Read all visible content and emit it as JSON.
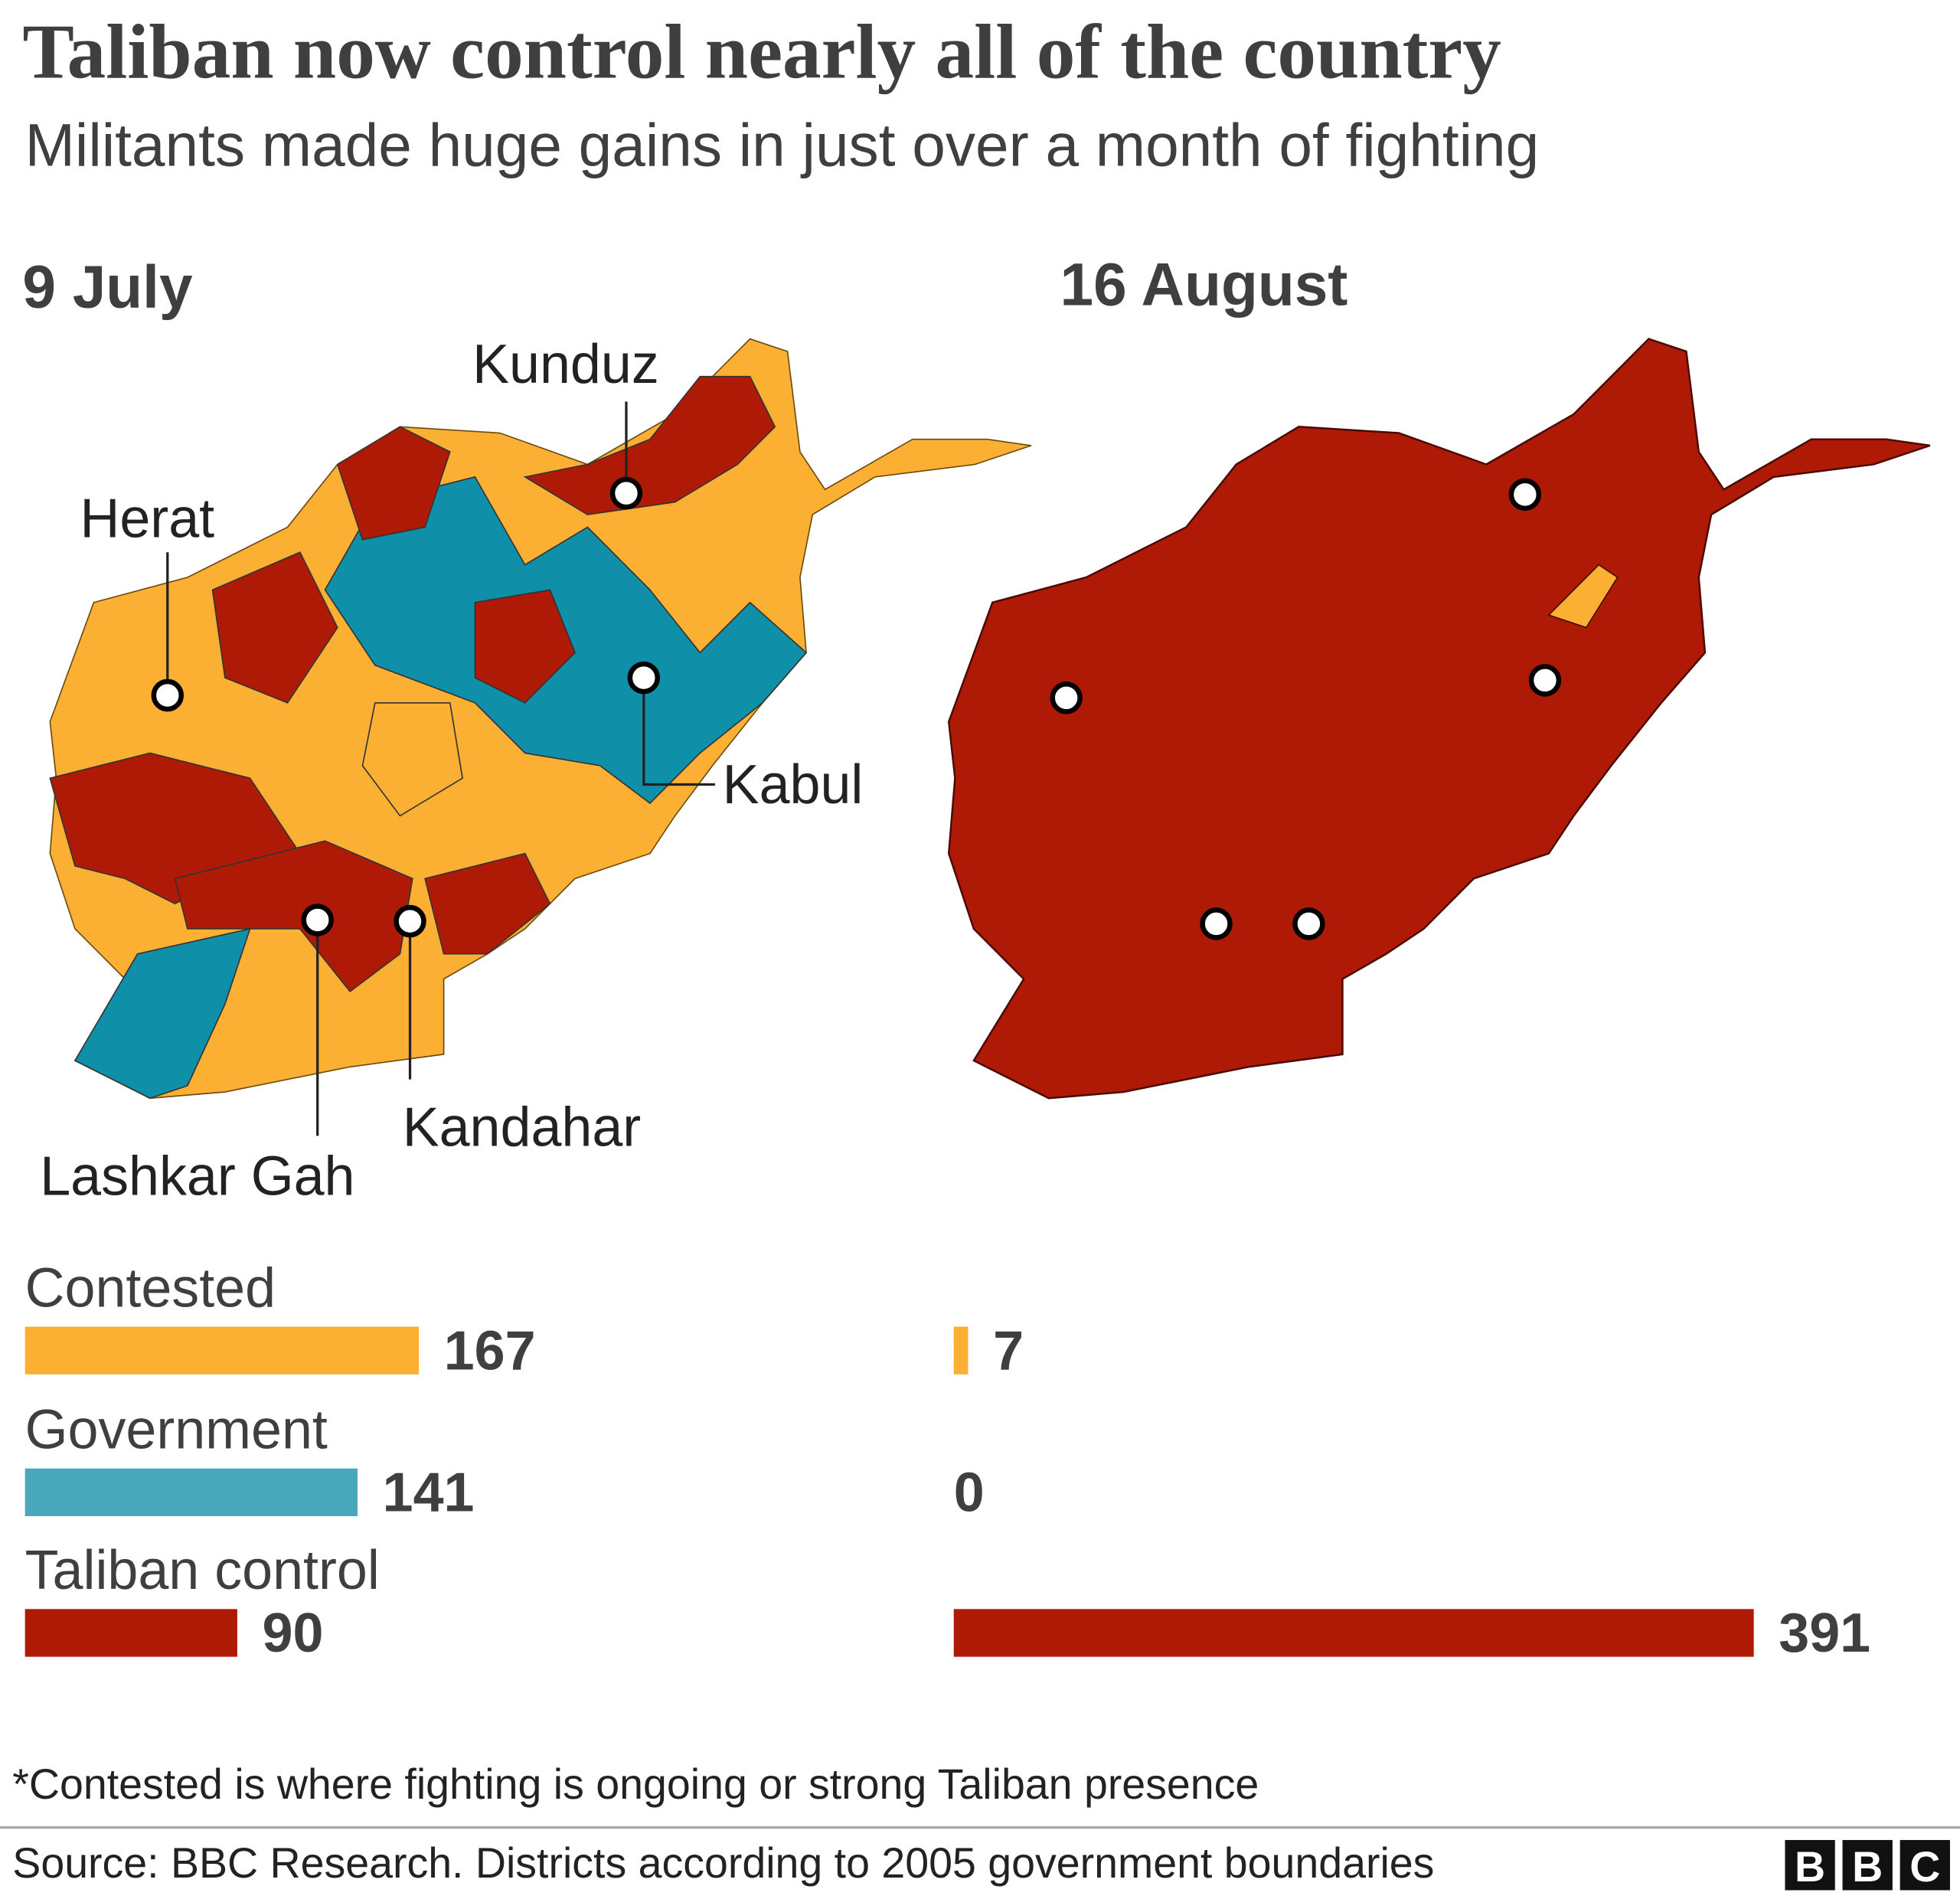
{
  "title": "Taliban now control nearly all of the country",
  "subtitle": "Militants made huge gains in just over a month of fighting",
  "note": "*Contested is where fighting is ongoing or strong Taliban presence",
  "source": "Source: BBC Research. Districts according to 2005 government boundaries",
  "logo": [
    "B",
    "B",
    "C"
  ],
  "chart_data": [
    {
      "type": "bar",
      "orientation": "horizontal",
      "title": "9 July",
      "categories": [
        "Contested",
        "Government",
        "Taliban control"
      ],
      "values": [
        167,
        141,
        90
      ],
      "colors": [
        "#fbb034",
        "#4aa8bd",
        "#ae1a06"
      ],
      "xlim": [
        0,
        371
      ],
      "annotations": [
        "Kunduz",
        "Herat",
        "Kabul",
        "Lashkar Gah",
        "Kandahar"
      ]
    },
    {
      "type": "bar",
      "orientation": "horizontal",
      "title": "16 August",
      "values": [
        7,
        0,
        391
      ],
      "colors": [
        "#fbb034",
        "#4aa8bd",
        "#ae1a06"
      ],
      "xlim": [
        0,
        391
      ]
    }
  ]
}
